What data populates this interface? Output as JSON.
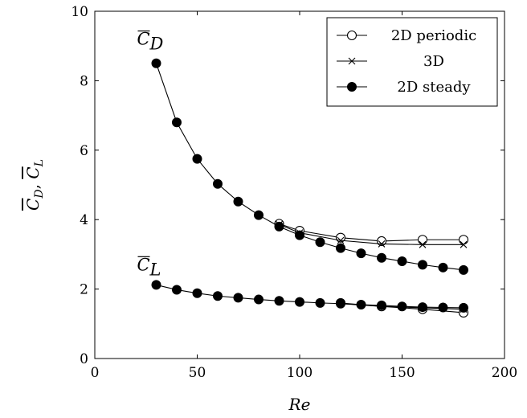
{
  "chart_data": {
    "type": "line",
    "title": "",
    "xlabel": "Re",
    "ylabel": "C_D, C_L",
    "ylabel_parts": [
      "C",
      "D",
      ", ",
      "C",
      "L"
    ],
    "xlim": [
      0,
      200
    ],
    "ylim": [
      0,
      10
    ],
    "xticks": [
      0,
      50,
      100,
      150,
      200
    ],
    "yticks": [
      0,
      2,
      4,
      6,
      8,
      10
    ],
    "grid": false,
    "legend_position": "top-right",
    "annotations": [
      {
        "base": "C",
        "sub": "D",
        "x": 30,
        "y": 8.9
      },
      {
        "base": "C",
        "sub": "L",
        "x": 30,
        "y": 2.4
      }
    ],
    "series": [
      {
        "name": "2D periodic",
        "marker": "open-circle",
        "groups": [
          {
            "x": [
              90,
              100,
              120,
              140,
              160,
              180
            ],
            "y": [
              3.88,
              3.68,
              3.48,
              3.38,
              3.42,
              3.42
            ]
          },
          {
            "x": [
              120,
              140,
              160,
              180
            ],
            "y": [
              1.6,
              1.5,
              1.42,
              1.32
            ]
          }
        ]
      },
      {
        "name": "3D",
        "marker": "cross",
        "groups": [
          {
            "x": [
              90,
              100,
              120,
              140,
              160,
              180
            ],
            "y": [
              3.86,
              3.62,
              3.4,
              3.3,
              3.28,
              3.28
            ]
          },
          {
            "x": [
              120,
              140,
              160,
              180
            ],
            "y": [
              1.58,
              1.5,
              1.46,
              1.42
            ]
          }
        ]
      },
      {
        "name": "2D steady",
        "marker": "filled-circle",
        "groups": [
          {
            "x": [
              30,
              40,
              50,
              60,
              70,
              80,
              90,
              100,
              110,
              120,
              130,
              140,
              150,
              160,
              170,
              180
            ],
            "y": [
              8.5,
              6.8,
              5.75,
              5.03,
              4.52,
              4.13,
              3.8,
              3.55,
              3.35,
              3.18,
              3.03,
              2.9,
              2.8,
              2.7,
              2.62,
              2.55
            ]
          },
          {
            "x": [
              30,
              40,
              50,
              60,
              70,
              80,
              90,
              100,
              110,
              120,
              130,
              140,
              150,
              160,
              170,
              180
            ],
            "y": [
              2.12,
              1.98,
              1.88,
              1.8,
              1.75,
              1.7,
              1.66,
              1.63,
              1.6,
              1.58,
              1.55,
              1.53,
              1.5,
              1.48,
              1.47,
              1.46
            ]
          }
        ]
      }
    ]
  }
}
